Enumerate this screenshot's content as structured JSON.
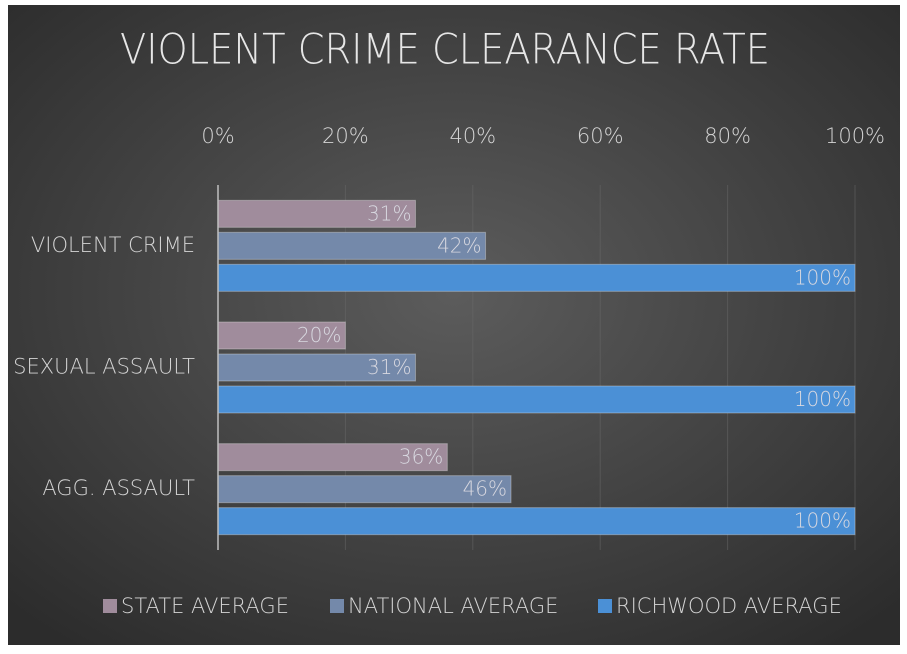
{
  "chart_data": {
    "type": "hbar",
    "title": "VIOLENT CRIME CLEARANCE RATE",
    "categories": [
      "VIOLENT CRIME",
      "SEXUAL ASSAULT",
      "AGG. ASSAULT"
    ],
    "series": [
      {
        "name": "STATE AVERAGE",
        "color": "#a08c9c",
        "values": [
          31,
          20,
          36
        ],
        "value_labels": [
          "31%",
          "20%",
          "36%"
        ]
      },
      {
        "name": "NATIONAL AVERAGE",
        "color": "#7489aa",
        "values": [
          42,
          31,
          46
        ],
        "value_labels": [
          "42%",
          "31%",
          "46%"
        ]
      },
      {
        "name": "RICHWOOD AVERAGE",
        "color": "#4b90d6",
        "values": [
          100,
          100,
          100
        ],
        "value_labels": [
          "100%",
          "100%",
          "100%"
        ]
      }
    ],
    "xlim": [
      0,
      100
    ],
    "xticks": [
      {
        "value": 0,
        "label": "0%"
      },
      {
        "value": 20,
        "label": "20%"
      },
      {
        "value": 40,
        "label": "40%"
      },
      {
        "value": 60,
        "label": "60%"
      },
      {
        "value": 80,
        "label": "80%"
      },
      {
        "value": 100,
        "label": "100%"
      }
    ],
    "grid": true,
    "legend": "bottom"
  }
}
